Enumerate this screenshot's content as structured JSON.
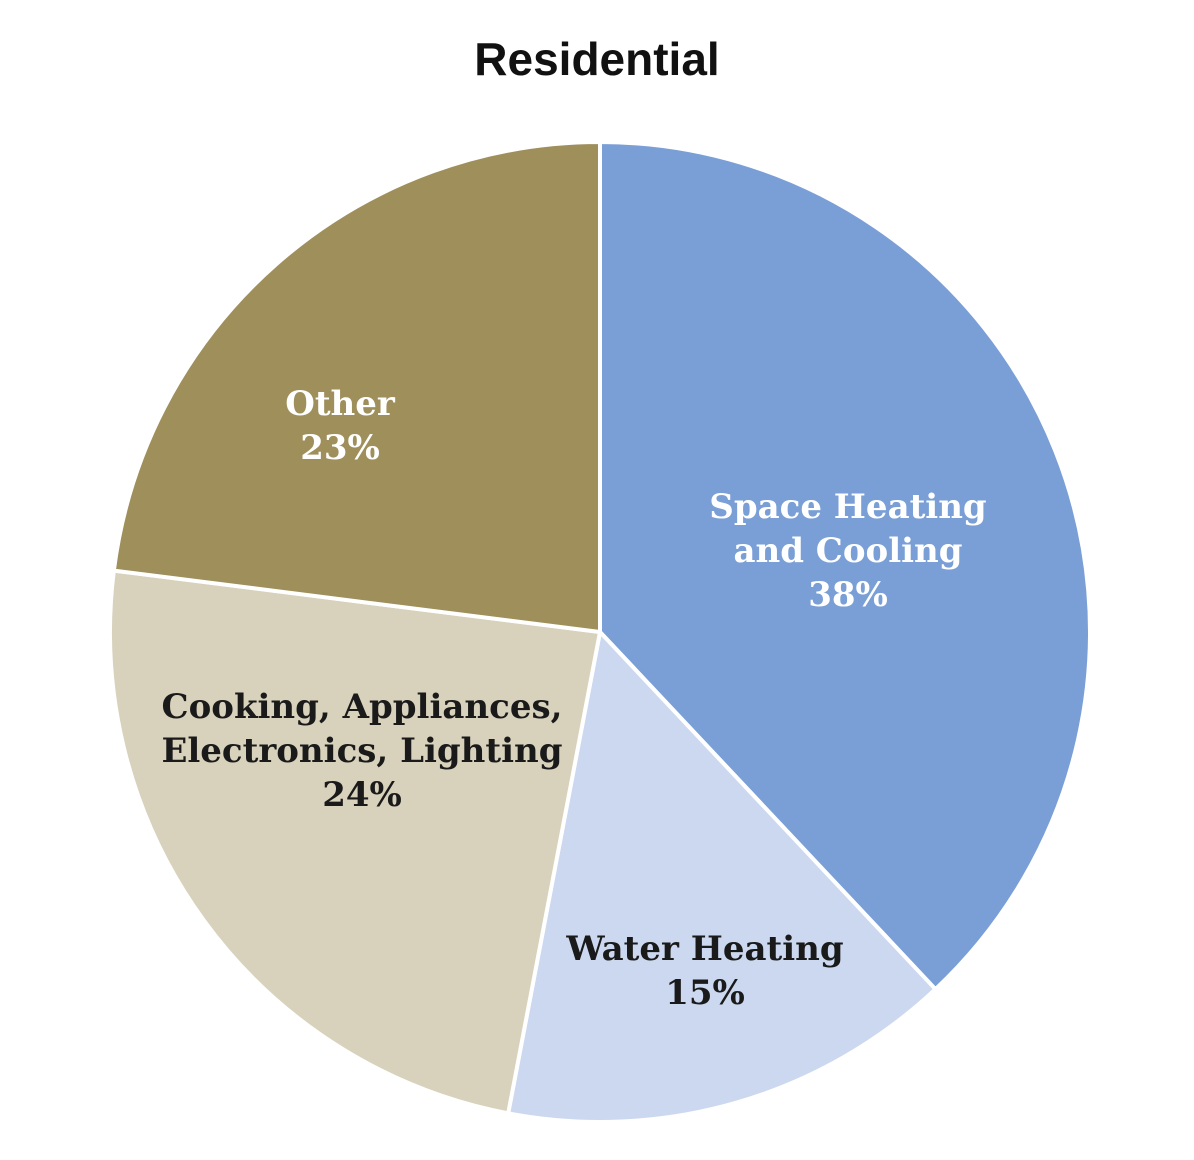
{
  "chart_data": {
    "type": "pie",
    "title": "Residential",
    "slices": [
      {
        "label_lines": [
          "Space Heating",
          "and Cooling"
        ],
        "value": 38,
        "value_label": "38%",
        "color": "#799fd6",
        "text_color": "#ffffff"
      },
      {
        "label_lines": [
          "Water Heating"
        ],
        "value": 15,
        "value_label": "15%",
        "color": "#cbd8ef",
        "text_color": "#1a1a1a"
      },
      {
        "label_lines": [
          "Cooking, Appliances,",
          "Electronics, Lighting"
        ],
        "value": 24,
        "value_label": "24%",
        "color": "#d8d2bc",
        "text_color": "#1a1a1a"
      },
      {
        "label_lines": [
          "Other"
        ],
        "value": 23,
        "value_label": "23%",
        "color": "#9f8f5b",
        "text_color": "#ffffff"
      }
    ],
    "start_angle_deg": 0,
    "direction": "clockwise"
  }
}
